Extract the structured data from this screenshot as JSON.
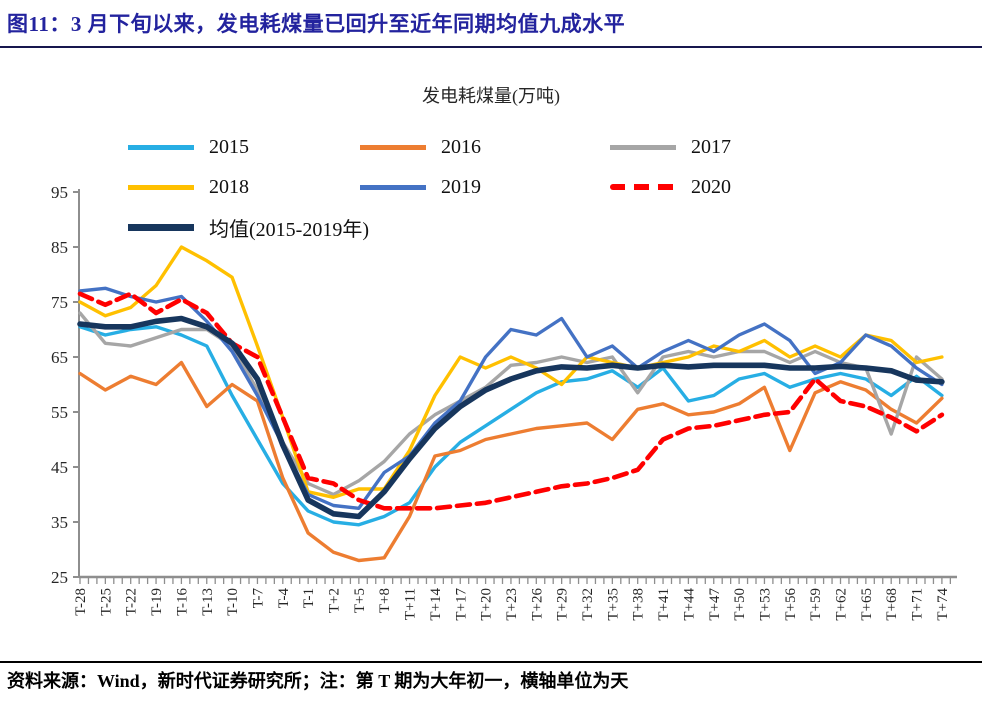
{
  "page": {
    "title": "图11：3 月下旬以来，发电耗煤量已回升至近年同期均值九成水平",
    "title_color": "#23239E"
  },
  "footer": {
    "text": "资料来源：Wind，新时代证券研究所；注：第 T 期为大年初一，横轴单位为天"
  },
  "chart_data": {
    "type": "line",
    "title": "发电耗煤量(万吨)",
    "xlabel": "",
    "ylabel": "",
    "ylim": [
      25,
      95
    ],
    "y_ticks": [
      25,
      35,
      45,
      55,
      65,
      75,
      85,
      95
    ],
    "grid": false,
    "legend_position": "top-left",
    "axis_color": "#8E8E8E",
    "tick_label_color": "#262626",
    "x_start": -28,
    "x_step": 3,
    "categories": [
      "T-28",
      "T-25",
      "T-22",
      "T-19",
      "T-16",
      "T-13",
      "T-10",
      "T-7",
      "T-4",
      "T-1",
      "T+2",
      "T+5",
      "T+8",
      "T+11",
      "T+14",
      "T+17",
      "T+20",
      "T+23",
      "T+26",
      "T+29",
      "T+32",
      "T+35",
      "T+38",
      "T+41",
      "T+44",
      "T+47",
      "T+50",
      "T+53",
      "T+56",
      "T+59",
      "T+62",
      "T+65",
      "T+68",
      "T+71",
      "T+74"
    ],
    "series": [
      {
        "key": "2015",
        "name": "2015",
        "color": "#27AEE4",
        "dash": false,
        "width": 3.4,
        "values": [
          70.5,
          69,
          70,
          70.5,
          69,
          67,
          58,
          50,
          42,
          37,
          35,
          34.5,
          36,
          38.5,
          45,
          49.5,
          52.5,
          55.5,
          58.5,
          60.5,
          61,
          62.5,
          59.5,
          63,
          57,
          58,
          61,
          62,
          59.5,
          61,
          62,
          61,
          58,
          61.5,
          58
        ]
      },
      {
        "key": "2016",
        "name": "2016",
        "color": "#ED7D31",
        "dash": false,
        "width": 3.4,
        "values": [
          62,
          59,
          61.5,
          60,
          64,
          56,
          60,
          57,
          43,
          33,
          29.5,
          28,
          28.5,
          36,
          47,
          48,
          50,
          51,
          52,
          52.5,
          53,
          50,
          55.5,
          56.5,
          54.5,
          55,
          56.5,
          59.5,
          48,
          58.5,
          60.5,
          59,
          55.5,
          53,
          57.5
        ]
      },
      {
        "key": "2017",
        "name": "2017",
        "color": "#A6A6A6",
        "dash": false,
        "width": 3.4,
        "values": [
          73,
          67.5,
          67,
          68.5,
          70,
          70,
          67,
          59,
          49.5,
          42,
          40,
          42.5,
          46,
          51,
          54.5,
          57,
          59.5,
          63.5,
          64,
          65,
          64,
          65,
          58.5,
          65,
          66,
          65,
          66,
          66,
          64,
          66,
          64,
          63,
          51,
          65,
          61
        ]
      },
      {
        "key": "2018",
        "name": "2018",
        "color": "#FFC000",
        "dash": false,
        "width": 3.4,
        "values": [
          75,
          72.5,
          74,
          78,
          85,
          82.5,
          79.5,
          67,
          54,
          40.5,
          39.5,
          41,
          41,
          48,
          58,
          65,
          63,
          65,
          63,
          60,
          65,
          64,
          63,
          64,
          65,
          67,
          66,
          68,
          65,
          67,
          65,
          69,
          68,
          64,
          65
        ]
      },
      {
        "key": "2019",
        "name": "2019",
        "color": "#4472C4",
        "dash": false,
        "width": 3.4,
        "values": [
          77,
          77.5,
          76,
          75,
          76,
          71.5,
          66,
          58,
          49,
          40,
          38,
          37.5,
          44,
          47,
          53,
          57,
          65,
          70,
          69,
          72,
          65,
          67,
          63,
          66,
          68,
          66,
          69,
          71,
          68,
          62,
          64,
          69,
          67,
          63,
          60
        ]
      },
      {
        "key": "2020",
        "name": "2020",
        "color": "#FF0000",
        "dash": true,
        "width": 4.6,
        "values": [
          76.5,
          74.5,
          76.5,
          73,
          75.5,
          73,
          67.5,
          65,
          54,
          43,
          42,
          39,
          37.5,
          37.5,
          37.5,
          38,
          38.5,
          39.5,
          40.5,
          41.5,
          42,
          43,
          44.5,
          50,
          52,
          52.5,
          53.5,
          54.5,
          55,
          61,
          57,
          56,
          54,
          51.5,
          54.5
        ]
      },
      {
        "key": "mean",
        "name": "均值(2015-2019年)",
        "color": "#17365D",
        "dash": false,
        "width": 5.6,
        "values": [
          71,
          70.5,
          70.5,
          71.5,
          72,
          70.5,
          67.5,
          61,
          49,
          39,
          36.5,
          36,
          40.5,
          46.5,
          52,
          56,
          59,
          61,
          62.5,
          63.2,
          63,
          63.5,
          63,
          63.5,
          63.2,
          63.5,
          63.5,
          63.5,
          63,
          63,
          63.3,
          63,
          62.5,
          60.8,
          60.5
        ]
      }
    ]
  }
}
